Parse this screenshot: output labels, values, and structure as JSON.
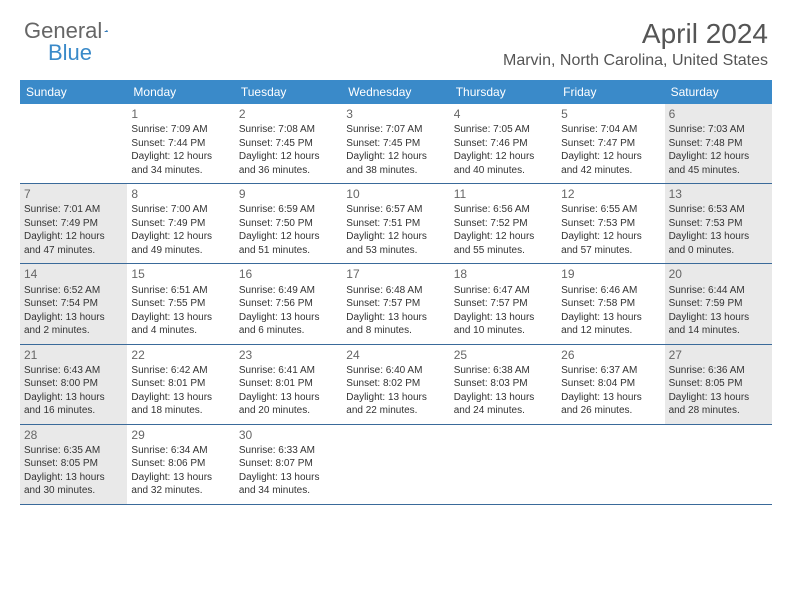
{
  "logo": {
    "text1": "General",
    "text2": "Blue"
  },
  "title": "April 2024",
  "location": "Marvin, North Carolina, United States",
  "colors": {
    "header_bg": "#3a8ac9",
    "header_text": "#ffffff",
    "shaded_bg": "#e9e9e9",
    "border": "#3a6a9a",
    "text": "#333333",
    "title_text": "#555555"
  },
  "day_names": [
    "Sunday",
    "Monday",
    "Tuesday",
    "Wednesday",
    "Thursday",
    "Friday",
    "Saturday"
  ],
  "weeks": [
    [
      {
        "day": "",
        "sunrise": "",
        "sunset": "",
        "daylight": "",
        "shaded": false
      },
      {
        "day": "1",
        "sunrise": "Sunrise: 7:09 AM",
        "sunset": "Sunset: 7:44 PM",
        "daylight": "Daylight: 12 hours and 34 minutes.",
        "shaded": false
      },
      {
        "day": "2",
        "sunrise": "Sunrise: 7:08 AM",
        "sunset": "Sunset: 7:45 PM",
        "daylight": "Daylight: 12 hours and 36 minutes.",
        "shaded": false
      },
      {
        "day": "3",
        "sunrise": "Sunrise: 7:07 AM",
        "sunset": "Sunset: 7:45 PM",
        "daylight": "Daylight: 12 hours and 38 minutes.",
        "shaded": false
      },
      {
        "day": "4",
        "sunrise": "Sunrise: 7:05 AM",
        "sunset": "Sunset: 7:46 PM",
        "daylight": "Daylight: 12 hours and 40 minutes.",
        "shaded": false
      },
      {
        "day": "5",
        "sunrise": "Sunrise: 7:04 AM",
        "sunset": "Sunset: 7:47 PM",
        "daylight": "Daylight: 12 hours and 42 minutes.",
        "shaded": false
      },
      {
        "day": "6",
        "sunrise": "Sunrise: 7:03 AM",
        "sunset": "Sunset: 7:48 PM",
        "daylight": "Daylight: 12 hours and 45 minutes.",
        "shaded": true
      }
    ],
    [
      {
        "day": "7",
        "sunrise": "Sunrise: 7:01 AM",
        "sunset": "Sunset: 7:49 PM",
        "daylight": "Daylight: 12 hours and 47 minutes.",
        "shaded": true
      },
      {
        "day": "8",
        "sunrise": "Sunrise: 7:00 AM",
        "sunset": "Sunset: 7:49 PM",
        "daylight": "Daylight: 12 hours and 49 minutes.",
        "shaded": false
      },
      {
        "day": "9",
        "sunrise": "Sunrise: 6:59 AM",
        "sunset": "Sunset: 7:50 PM",
        "daylight": "Daylight: 12 hours and 51 minutes.",
        "shaded": false
      },
      {
        "day": "10",
        "sunrise": "Sunrise: 6:57 AM",
        "sunset": "Sunset: 7:51 PM",
        "daylight": "Daylight: 12 hours and 53 minutes.",
        "shaded": false
      },
      {
        "day": "11",
        "sunrise": "Sunrise: 6:56 AM",
        "sunset": "Sunset: 7:52 PM",
        "daylight": "Daylight: 12 hours and 55 minutes.",
        "shaded": false
      },
      {
        "day": "12",
        "sunrise": "Sunrise: 6:55 AM",
        "sunset": "Sunset: 7:53 PM",
        "daylight": "Daylight: 12 hours and 57 minutes.",
        "shaded": false
      },
      {
        "day": "13",
        "sunrise": "Sunrise: 6:53 AM",
        "sunset": "Sunset: 7:53 PM",
        "daylight": "Daylight: 13 hours and 0 minutes.",
        "shaded": true
      }
    ],
    [
      {
        "day": "14",
        "sunrise": "Sunrise: 6:52 AM",
        "sunset": "Sunset: 7:54 PM",
        "daylight": "Daylight: 13 hours and 2 minutes.",
        "shaded": true
      },
      {
        "day": "15",
        "sunrise": "Sunrise: 6:51 AM",
        "sunset": "Sunset: 7:55 PM",
        "daylight": "Daylight: 13 hours and 4 minutes.",
        "shaded": false
      },
      {
        "day": "16",
        "sunrise": "Sunrise: 6:49 AM",
        "sunset": "Sunset: 7:56 PM",
        "daylight": "Daylight: 13 hours and 6 minutes.",
        "shaded": false
      },
      {
        "day": "17",
        "sunrise": "Sunrise: 6:48 AM",
        "sunset": "Sunset: 7:57 PM",
        "daylight": "Daylight: 13 hours and 8 minutes.",
        "shaded": false
      },
      {
        "day": "18",
        "sunrise": "Sunrise: 6:47 AM",
        "sunset": "Sunset: 7:57 PM",
        "daylight": "Daylight: 13 hours and 10 minutes.",
        "shaded": false
      },
      {
        "day": "19",
        "sunrise": "Sunrise: 6:46 AM",
        "sunset": "Sunset: 7:58 PM",
        "daylight": "Daylight: 13 hours and 12 minutes.",
        "shaded": false
      },
      {
        "day": "20",
        "sunrise": "Sunrise: 6:44 AM",
        "sunset": "Sunset: 7:59 PM",
        "daylight": "Daylight: 13 hours and 14 minutes.",
        "shaded": true
      }
    ],
    [
      {
        "day": "21",
        "sunrise": "Sunrise: 6:43 AM",
        "sunset": "Sunset: 8:00 PM",
        "daylight": "Daylight: 13 hours and 16 minutes.",
        "shaded": true
      },
      {
        "day": "22",
        "sunrise": "Sunrise: 6:42 AM",
        "sunset": "Sunset: 8:01 PM",
        "daylight": "Daylight: 13 hours and 18 minutes.",
        "shaded": false
      },
      {
        "day": "23",
        "sunrise": "Sunrise: 6:41 AM",
        "sunset": "Sunset: 8:01 PM",
        "daylight": "Daylight: 13 hours and 20 minutes.",
        "shaded": false
      },
      {
        "day": "24",
        "sunrise": "Sunrise: 6:40 AM",
        "sunset": "Sunset: 8:02 PM",
        "daylight": "Daylight: 13 hours and 22 minutes.",
        "shaded": false
      },
      {
        "day": "25",
        "sunrise": "Sunrise: 6:38 AM",
        "sunset": "Sunset: 8:03 PM",
        "daylight": "Daylight: 13 hours and 24 minutes.",
        "shaded": false
      },
      {
        "day": "26",
        "sunrise": "Sunrise: 6:37 AM",
        "sunset": "Sunset: 8:04 PM",
        "daylight": "Daylight: 13 hours and 26 minutes.",
        "shaded": false
      },
      {
        "day": "27",
        "sunrise": "Sunrise: 6:36 AM",
        "sunset": "Sunset: 8:05 PM",
        "daylight": "Daylight: 13 hours and 28 minutes.",
        "shaded": true
      }
    ],
    [
      {
        "day": "28",
        "sunrise": "Sunrise: 6:35 AM",
        "sunset": "Sunset: 8:05 PM",
        "daylight": "Daylight: 13 hours and 30 minutes.",
        "shaded": true
      },
      {
        "day": "29",
        "sunrise": "Sunrise: 6:34 AM",
        "sunset": "Sunset: 8:06 PM",
        "daylight": "Daylight: 13 hours and 32 minutes.",
        "shaded": false
      },
      {
        "day": "30",
        "sunrise": "Sunrise: 6:33 AM",
        "sunset": "Sunset: 8:07 PM",
        "daylight": "Daylight: 13 hours and 34 minutes.",
        "shaded": false
      },
      {
        "day": "",
        "sunrise": "",
        "sunset": "",
        "daylight": "",
        "shaded": false
      },
      {
        "day": "",
        "sunrise": "",
        "sunset": "",
        "daylight": "",
        "shaded": false
      },
      {
        "day": "",
        "sunrise": "",
        "sunset": "",
        "daylight": "",
        "shaded": false
      },
      {
        "day": "",
        "sunrise": "",
        "sunset": "",
        "daylight": "",
        "shaded": false
      }
    ]
  ]
}
